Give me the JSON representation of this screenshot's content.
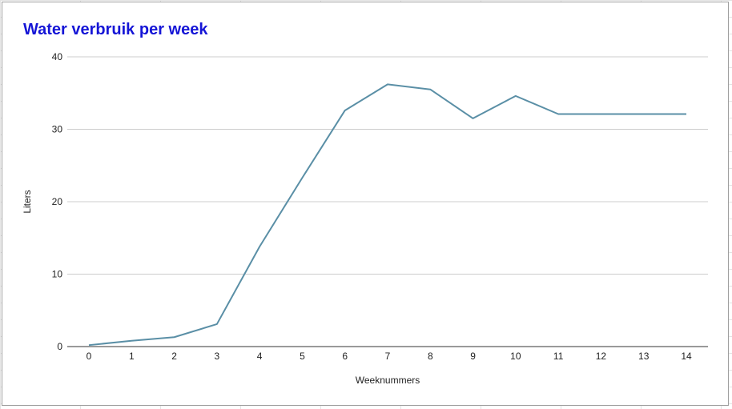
{
  "chart_data": {
    "type": "line",
    "title": "Water verbruik per week",
    "xlabel": "Weeknummers",
    "ylabel": "Liters",
    "x": [
      0,
      1,
      2,
      3,
      4,
      5,
      6,
      7,
      8,
      9,
      10,
      11,
      12,
      13,
      14
    ],
    "series": [
      {
        "values": [
          0.2,
          0.8,
          1.3,
          3.1,
          13.8,
          23.3,
          32.6,
          36.2,
          35.5,
          31.5,
          34.6,
          32.1,
          32.1,
          32.1,
          32.1
        ]
      }
    ],
    "xlim": [
      0,
      14
    ],
    "ylim": [
      0,
      40
    ],
    "yticks": [
      0,
      10,
      20,
      30,
      40
    ],
    "grid": true,
    "legend": "none",
    "colors": {
      "line": "#5a8fa6",
      "title": "#1515d6",
      "grid": "#cccccc",
      "axis": "#333333"
    }
  }
}
